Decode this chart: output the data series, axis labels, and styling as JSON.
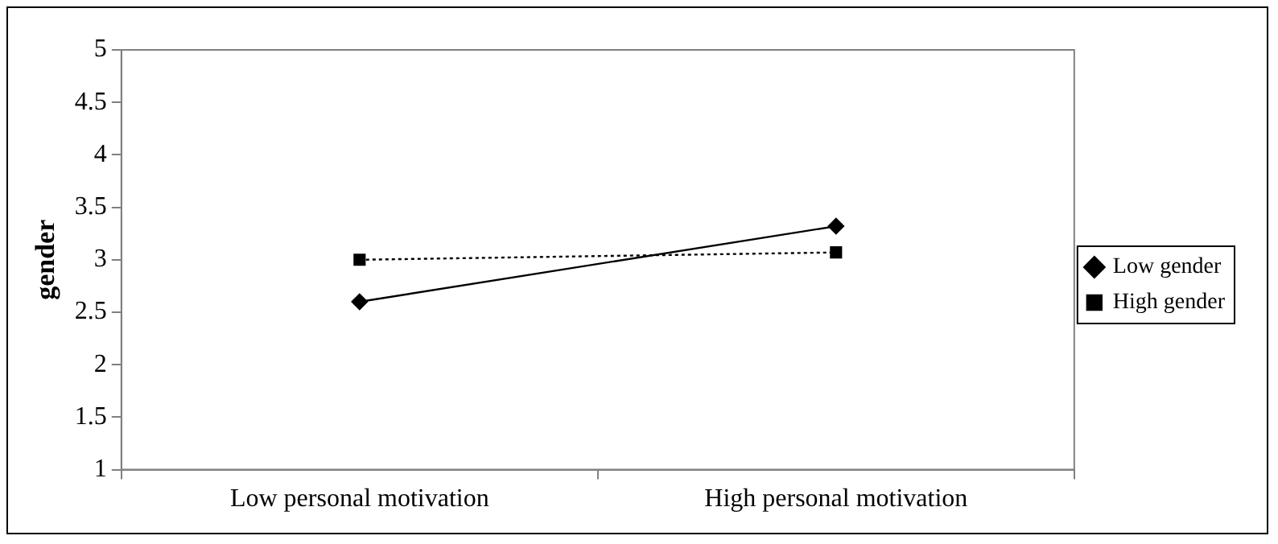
{
  "chart_data": {
    "type": "line",
    "ylabel": "gender",
    "categories": [
      "Low personal motivation",
      "High personal motivation"
    ],
    "series": [
      {
        "name": "Low gender",
        "color": "#000000",
        "values": [
          2.6,
          3.32
        ],
        "marker": "diamond",
        "line_style": "solid"
      },
      {
        "name": "High gender",
        "color": "#000000",
        "values": [
          3.0,
          3.07
        ],
        "marker": "square",
        "line_style": "dotted"
      }
    ],
    "ylim": [
      1,
      5
    ],
    "yticks": [
      1,
      1.5,
      2,
      2.5,
      3,
      3.5,
      4,
      4.5,
      5
    ],
    "grid": false,
    "legend": "right"
  }
}
